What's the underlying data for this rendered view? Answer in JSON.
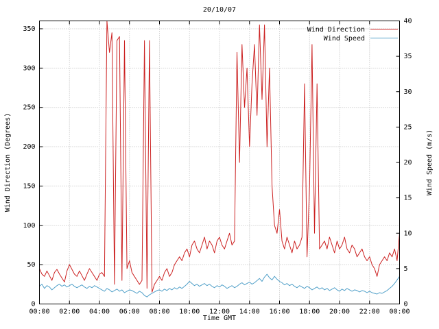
{
  "chart_data": {
    "type": "line",
    "title": "20/10/07",
    "xlabel": "Time GMT",
    "ylabel_left": "Wind Direction (Degrees)",
    "ylabel_right": "Wind Speed (m/s)",
    "grid": true,
    "legend_position": "top-right-inside",
    "xlim_minutes": [
      0,
      1440
    ],
    "x_tick_minutes": [
      0,
      120,
      240,
      360,
      480,
      600,
      720,
      840,
      960,
      1080,
      1200,
      1320,
      1440
    ],
    "x_tick_labels": [
      "00:00",
      "02:00",
      "04:00",
      "06:00",
      "08:00",
      "10:00",
      "12:00",
      "14:00",
      "16:00",
      "18:00",
      "20:00",
      "22:00",
      "00:00"
    ],
    "ylim_left": [
      0,
      360
    ],
    "yticks_left": [
      0,
      50,
      100,
      150,
      200,
      250,
      300,
      350
    ],
    "ylim_right": [
      0,
      40
    ],
    "yticks_right": [
      0,
      5,
      10,
      15,
      20,
      25,
      30,
      35,
      40
    ],
    "x_start_minutes": 0,
    "x_step_minutes": 10,
    "series": [
      {
        "name": "Wind Direction",
        "axis": "left",
        "color": "#cc2222",
        "values": [
          45,
          38,
          35,
          42,
          36,
          30,
          40,
          44,
          38,
          33,
          28,
          42,
          50,
          44,
          38,
          35,
          42,
          36,
          30,
          38,
          45,
          40,
          35,
          30,
          38,
          40,
          35,
          360,
          320,
          345,
          25,
          335,
          340,
          30,
          335,
          45,
          55,
          40,
          35,
          30,
          25,
          30,
          335,
          20,
          335,
          15,
          25,
          30,
          35,
          30,
          40,
          45,
          35,
          40,
          50,
          55,
          60,
          55,
          65,
          70,
          60,
          75,
          80,
          70,
          65,
          75,
          85,
          70,
          80,
          75,
          65,
          80,
          85,
          75,
          70,
          80,
          90,
          75,
          80,
          320,
          180,
          330,
          250,
          300,
          200,
          280,
          330,
          240,
          355,
          260,
          355,
          200,
          300,
          150,
          100,
          90,
          120,
          80,
          70,
          85,
          75,
          65,
          80,
          70,
          75,
          85,
          280,
          60,
          150,
          330,
          90,
          280,
          70,
          75,
          80,
          70,
          85,
          75,
          65,
          80,
          70,
          75,
          85,
          70,
          65,
          75,
          70,
          60,
          65,
          70,
          60,
          55,
          60,
          50,
          45,
          35,
          50,
          55,
          60,
          55,
          65,
          60,
          70,
          55,
          90
        ]
      },
      {
        "name": "Wind Speed",
        "axis": "right",
        "color": "#4f9fc8",
        "values": [
          2.5,
          2.8,
          2.2,
          2.6,
          2.4,
          2.0,
          2.3,
          2.6,
          2.8,
          2.5,
          2.7,
          2.4,
          2.6,
          2.8,
          2.5,
          2.3,
          2.5,
          2.7,
          2.4,
          2.2,
          2.5,
          2.3,
          2.6,
          2.4,
          2.2,
          2.0,
          1.8,
          2.2,
          2.0,
          1.7,
          1.9,
          2.1,
          1.8,
          2.0,
          1.6,
          1.8,
          2.0,
          1.9,
          1.7,
          1.5,
          1.8,
          1.6,
          1.2,
          1.0,
          1.3,
          1.5,
          1.7,
          1.9,
          2.0,
          1.8,
          2.1,
          1.9,
          2.2,
          2.0,
          2.3,
          2.1,
          2.4,
          2.2,
          2.5,
          2.8,
          3.2,
          2.9,
          2.6,
          2.8,
          2.5,
          2.7,
          2.9,
          2.6,
          2.8,
          2.5,
          2.3,
          2.6,
          2.4,
          2.7,
          2.5,
          2.2,
          2.4,
          2.6,
          2.3,
          2.5,
          2.8,
          3.0,
          2.7,
          2.9,
          3.1,
          2.8,
          3.0,
          3.3,
          3.6,
          3.2,
          3.8,
          4.2,
          3.7,
          3.4,
          3.9,
          3.5,
          3.2,
          3.0,
          2.7,
          2.9,
          2.6,
          2.8,
          2.5,
          2.3,
          2.6,
          2.4,
          2.2,
          2.5,
          2.3,
          2.0,
          2.2,
          2.4,
          2.1,
          2.3,
          2.0,
          2.2,
          1.9,
          2.1,
          2.3,
          2.0,
          1.8,
          2.1,
          1.9,
          2.2,
          2.0,
          1.8,
          2.0,
          1.9,
          1.7,
          1.9,
          1.8,
          1.6,
          1.8,
          1.6,
          1.5,
          1.4,
          1.6,
          1.5,
          1.7,
          1.9,
          2.2,
          2.5,
          2.9,
          3.4,
          3.9
        ]
      }
    ]
  }
}
